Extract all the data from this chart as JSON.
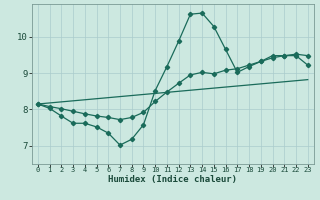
{
  "xlabel": "Humidex (Indice chaleur)",
  "bg_color": "#cce8e0",
  "grid_color": "#aacccc",
  "line_color": "#1a6b5a",
  "xlim": [
    -0.5,
    23.5
  ],
  "ylim": [
    6.5,
    10.9
  ],
  "yticks": [
    7,
    8,
    9,
    10
  ],
  "xticks": [
    0,
    1,
    2,
    3,
    4,
    5,
    6,
    7,
    8,
    9,
    10,
    11,
    12,
    13,
    14,
    15,
    16,
    17,
    18,
    19,
    20,
    21,
    22,
    23
  ],
  "line1_x": [
    0,
    1,
    2,
    3,
    4,
    5,
    6,
    7,
    8,
    9,
    10,
    11,
    12,
    13,
    14,
    15,
    16,
    17,
    18,
    19,
    20,
    21,
    22,
    23
  ],
  "line1_y": [
    8.15,
    8.03,
    7.82,
    7.62,
    7.62,
    7.52,
    7.35,
    7.02,
    7.18,
    7.58,
    8.52,
    9.18,
    9.88,
    10.62,
    10.65,
    10.28,
    9.65,
    9.02,
    9.18,
    9.32,
    9.48,
    9.48,
    9.48,
    9.22
  ],
  "line2_x": [
    0,
    1,
    2,
    3,
    4,
    5,
    6,
    7,
    8,
    9,
    10,
    11,
    12,
    13,
    14,
    15,
    16,
    17,
    18,
    19,
    20,
    21,
    22,
    23
  ],
  "line2_y": [
    8.15,
    8.08,
    8.02,
    7.95,
    7.88,
    7.82,
    7.78,
    7.72,
    7.78,
    7.92,
    8.22,
    8.48,
    8.72,
    8.95,
    9.02,
    8.98,
    9.08,
    9.12,
    9.22,
    9.32,
    9.42,
    9.48,
    9.52,
    9.48
  ],
  "line3_x": [
    0,
    23
  ],
  "line3_y": [
    8.15,
    8.82
  ]
}
